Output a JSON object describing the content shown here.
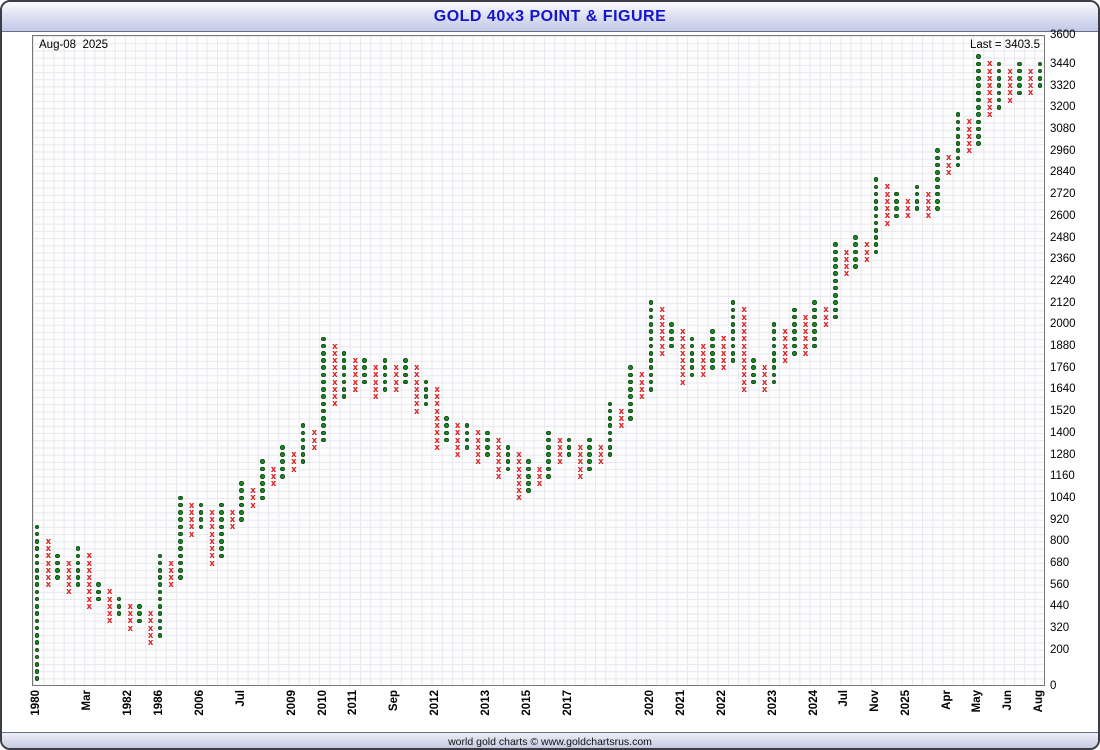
{
  "window": {
    "title": "GOLD 40x3 POINT & FIGURE",
    "footer": "world gold charts © www.goldchartsrus.com"
  },
  "annotations": {
    "date": "Aug-08  2025",
    "last": "Last = 3403.5"
  },
  "colors": {
    "title_text": "#1414cc",
    "up_mark": "#1d8a22",
    "down_mark": "#e02020",
    "grid": "#e7e7ef"
  },
  "chart_data": {
    "type": "point-and-figure",
    "title": "GOLD 40x3 POINT & FIGURE",
    "instrument": "GOLD",
    "box_size": 40,
    "reversal": 3,
    "last": 3403.5,
    "date": "Aug-08 2025",
    "ylim": [
      0,
      3600
    ],
    "y_ticks": [
      3600,
      3440,
      3320,
      3200,
      3080,
      2960,
      2840,
      2720,
      2600,
      2480,
      2360,
      2240,
      2120,
      2000,
      1880,
      1760,
      1640,
      1520,
      1400,
      1280,
      1160,
      1040,
      920,
      800,
      680,
      560,
      440,
      320,
      200,
      0
    ],
    "x_labels": [
      [
        "1980",
        0
      ],
      [
        "Mar",
        5
      ],
      [
        "1982",
        9
      ],
      [
        "1986",
        12
      ],
      [
        "2006",
        16
      ],
      [
        "Jul",
        20
      ],
      [
        "2009",
        25
      ],
      [
        "2010",
        28
      ],
      [
        "2011",
        31
      ],
      [
        "Sep",
        35
      ],
      [
        "2012",
        39
      ],
      [
        "2013",
        44
      ],
      [
        "2015",
        48
      ],
      [
        "2017",
        52
      ],
      [
        "2020",
        60
      ],
      [
        "2021",
        63
      ],
      [
        "2022",
        67
      ],
      [
        "2023",
        72
      ],
      [
        "2024",
        76
      ],
      [
        "Jul",
        79
      ],
      [
        "Nov",
        82
      ],
      [
        "2025",
        85
      ],
      [
        "Apr",
        89
      ],
      [
        "May",
        92
      ],
      [
        "Jun",
        95
      ],
      [
        "Aug",
        98
      ]
    ],
    "columns": [
      [
        "X",
        40,
        880
      ],
      [
        "O",
        560,
        800
      ],
      [
        "X",
        600,
        720
      ],
      [
        "O",
        520,
        680
      ],
      [
        "X",
        560,
        760
      ],
      [
        "O",
        440,
        720
      ],
      [
        "X",
        480,
        560
      ],
      [
        "O",
        360,
        520
      ],
      [
        "X",
        400,
        480
      ],
      [
        "O",
        320,
        440
      ],
      [
        "X",
        360,
        440
      ],
      [
        "O",
        240,
        400
      ],
      [
        "X",
        280,
        720
      ],
      [
        "O",
        560,
        680
      ],
      [
        "X",
        600,
        1040
      ],
      [
        "O",
        840,
        1000
      ],
      [
        "X",
        880,
        1000
      ],
      [
        "O",
        680,
        960
      ],
      [
        "X",
        720,
        1000
      ],
      [
        "O",
        880,
        960
      ],
      [
        "X",
        920,
        1120
      ],
      [
        "O",
        1000,
        1080
      ],
      [
        "X",
        1040,
        1240
      ],
      [
        "O",
        1120,
        1200
      ],
      [
        "X",
        1160,
        1320
      ],
      [
        "O",
        1200,
        1280
      ],
      [
        "X",
        1240,
        1440
      ],
      [
        "O",
        1320,
        1400
      ],
      [
        "X",
        1360,
        1920
      ],
      [
        "O",
        1560,
        1880
      ],
      [
        "X",
        1600,
        1840
      ],
      [
        "O",
        1640,
        1800
      ],
      [
        "X",
        1680,
        1800
      ],
      [
        "O",
        1600,
        1760
      ],
      [
        "X",
        1640,
        1800
      ],
      [
        "O",
        1640,
        1760
      ],
      [
        "X",
        1680,
        1800
      ],
      [
        "O",
        1520,
        1760
      ],
      [
        "X",
        1560,
        1680
      ],
      [
        "O",
        1320,
        1640
      ],
      [
        "X",
        1360,
        1480
      ],
      [
        "O",
        1280,
        1440
      ],
      [
        "X",
        1320,
        1440
      ],
      [
        "O",
        1240,
        1400
      ],
      [
        "X",
        1280,
        1400
      ],
      [
        "O",
        1160,
        1360
      ],
      [
        "X",
        1200,
        1320
      ],
      [
        "O",
        1040,
        1280
      ],
      [
        "X",
        1080,
        1240
      ],
      [
        "O",
        1120,
        1200
      ],
      [
        "X",
        1160,
        1400
      ],
      [
        "O",
        1240,
        1360
      ],
      [
        "X",
        1280,
        1360
      ],
      [
        "O",
        1160,
        1320
      ],
      [
        "X",
        1200,
        1360
      ],
      [
        "O",
        1240,
        1320
      ],
      [
        "X",
        1280,
        1560
      ],
      [
        "O",
        1440,
        1520
      ],
      [
        "X",
        1480,
        1760
      ],
      [
        "O",
        1600,
        1720
      ],
      [
        "X",
        1640,
        2120
      ],
      [
        "O",
        1840,
        2080
      ],
      [
        "X",
        1880,
        2000
      ],
      [
        "O",
        1680,
        1960
      ],
      [
        "X",
        1720,
        1920
      ],
      [
        "O",
        1720,
        1880
      ],
      [
        "X",
        1760,
        1960
      ],
      [
        "O",
        1760,
        1920
      ],
      [
        "X",
        1800,
        2120
      ],
      [
        "O",
        1640,
        2080
      ],
      [
        "X",
        1680,
        1800
      ],
      [
        "O",
        1640,
        1760
      ],
      [
        "X",
        1680,
        2000
      ],
      [
        "O",
        1800,
        1960
      ],
      [
        "X",
        1840,
        2080
      ],
      [
        "O",
        1840,
        2040
      ],
      [
        "X",
        1880,
        2120
      ],
      [
        "O",
        2000,
        2080
      ],
      [
        "X",
        2040,
        2440
      ],
      [
        "O",
        2280,
        2400
      ],
      [
        "X",
        2320,
        2480
      ],
      [
        "O",
        2360,
        2440
      ],
      [
        "X",
        2400,
        2800
      ],
      [
        "O",
        2560,
        2760
      ],
      [
        "X",
        2600,
        2720
      ],
      [
        "O",
        2600,
        2680
      ],
      [
        "X",
        2640,
        2760
      ],
      [
        "O",
        2600,
        2720
      ],
      [
        "X",
        2640,
        2960
      ],
      [
        "O",
        2840,
        2920
      ],
      [
        "X",
        2880,
        3160
      ],
      [
        "O",
        2960,
        3120
      ],
      [
        "X",
        3000,
        3480
      ],
      [
        "O",
        3160,
        3440
      ],
      [
        "X",
        3200,
        3440
      ],
      [
        "O",
        3240,
        3400
      ],
      [
        "X",
        3280,
        3440
      ],
      [
        "O",
        3280,
        3400
      ],
      [
        "X",
        3320,
        3440
      ]
    ]
  }
}
